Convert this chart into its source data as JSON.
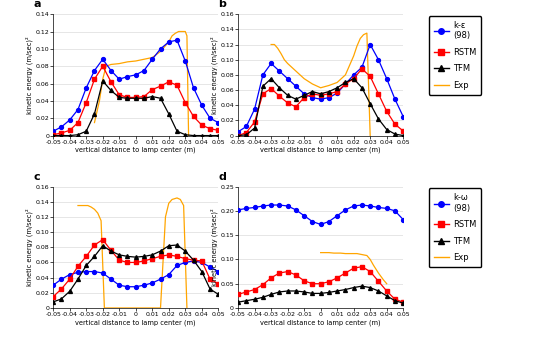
{
  "x": [
    -0.05,
    -0.045,
    -0.04,
    -0.035,
    -0.03,
    -0.025,
    -0.02,
    -0.015,
    -0.01,
    -0.005,
    0,
    0.005,
    0.01,
    0.015,
    0.02,
    0.025,
    0.03,
    0.035,
    0.04,
    0.045,
    0.05
  ],
  "panel_a": {
    "ke98": [
      0.005,
      0.01,
      0.018,
      0.03,
      0.055,
      0.075,
      0.088,
      0.075,
      0.065,
      0.068,
      0.07,
      0.075,
      0.088,
      0.1,
      0.108,
      0.11,
      0.086,
      0.055,
      0.035,
      0.02,
      0.015
    ],
    "rstm": [
      0.001,
      0.003,
      0.006,
      0.015,
      0.038,
      0.065,
      0.08,
      0.062,
      0.047,
      0.044,
      0.044,
      0.045,
      0.053,
      0.057,
      0.062,
      0.058,
      0.038,
      0.022,
      0.012,
      0.008,
      0.006
    ],
    "tfm": [
      0.0,
      0.0,
      0.0,
      0.001,
      0.005,
      0.025,
      0.063,
      0.052,
      0.044,
      0.043,
      0.043,
      0.043,
      0.045,
      0.043,
      0.025,
      0.005,
      0.001,
      0.0,
      0.0,
      0.0,
      0.0
    ],
    "exp_x": [
      -0.025,
      -0.022,
      -0.02,
      -0.018,
      -0.015,
      -0.01,
      -0.005,
      0,
      0.005,
      0.01,
      0.015,
      0.02,
      0.022,
      0.024,
      0.026,
      0.028,
      0.03,
      0.031,
      0.032
    ],
    "exp_y": [
      0.015,
      0.04,
      0.065,
      0.08,
      0.082,
      0.083,
      0.085,
      0.086,
      0.088,
      0.09,
      0.097,
      0.108,
      0.115,
      0.118,
      0.12,
      0.12,
      0.12,
      0.115,
      0.0
    ],
    "ylim": [
      0,
      0.14
    ],
    "yticks": [
      0,
      0.02,
      0.04,
      0.06,
      0.08,
      0.1,
      0.12,
      0.14
    ],
    "label": "a"
  },
  "panel_b": {
    "ke98": [
      0.005,
      0.012,
      0.035,
      0.08,
      0.095,
      0.085,
      0.075,
      0.065,
      0.055,
      0.05,
      0.048,
      0.05,
      0.056,
      0.068,
      0.08,
      0.09,
      0.12,
      0.1,
      0.075,
      0.048,
      0.025
    ],
    "rstm": [
      0.0,
      0.004,
      0.018,
      0.055,
      0.062,
      0.052,
      0.043,
      0.038,
      0.05,
      0.055,
      0.053,
      0.055,
      0.058,
      0.068,
      0.075,
      0.088,
      0.078,
      0.055,
      0.032,
      0.015,
      0.006
    ],
    "tfm": [
      0.0,
      0.001,
      0.01,
      0.065,
      0.075,
      0.063,
      0.053,
      0.048,
      0.053,
      0.058,
      0.055,
      0.058,
      0.063,
      0.07,
      0.075,
      0.063,
      0.042,
      0.022,
      0.008,
      0.002,
      0.0
    ],
    "exp_x": [
      -0.03,
      -0.028,
      -0.026,
      -0.024,
      -0.022,
      -0.02,
      -0.015,
      -0.01,
      -0.005,
      0,
      0.005,
      0.01,
      0.015,
      0.02,
      0.022,
      0.024,
      0.026,
      0.028,
      0.03
    ],
    "exp_y": [
      0.12,
      0.12,
      0.115,
      0.108,
      0.1,
      0.095,
      0.085,
      0.075,
      0.068,
      0.063,
      0.066,
      0.07,
      0.08,
      0.105,
      0.118,
      0.128,
      0.133,
      0.135,
      0.0
    ],
    "ylim": [
      0,
      0.16
    ],
    "yticks": [
      0,
      0.02,
      0.04,
      0.06,
      0.08,
      0.1,
      0.12,
      0.14,
      0.16
    ],
    "label": "b"
  },
  "panel_c": {
    "ke98": [
      0.03,
      0.038,
      0.044,
      0.047,
      0.048,
      0.048,
      0.046,
      0.038,
      0.03,
      0.028,
      0.028,
      0.03,
      0.033,
      0.038,
      0.044,
      0.056,
      0.06,
      0.062,
      0.06,
      0.054,
      0.048
    ],
    "rstm": [
      0.015,
      0.025,
      0.038,
      0.055,
      0.068,
      0.083,
      0.09,
      0.076,
      0.063,
      0.06,
      0.06,
      0.062,
      0.065,
      0.068,
      0.07,
      0.068,
      0.065,
      0.063,
      0.062,
      0.038,
      0.032
    ],
    "tfm": [
      0.008,
      0.012,
      0.022,
      0.038,
      0.056,
      0.068,
      0.082,
      0.075,
      0.07,
      0.068,
      0.067,
      0.068,
      0.07,
      0.075,
      0.082,
      0.083,
      0.075,
      0.063,
      0.048,
      0.025,
      0.018
    ],
    "exp_x": [
      -0.035,
      -0.033,
      -0.031,
      -0.029,
      -0.027,
      -0.025,
      -0.023,
      -0.021,
      -0.019,
      0.015,
      0.018,
      0.02,
      0.022,
      0.025,
      0.027,
      0.029,
      0.031
    ],
    "exp_y": [
      0.135,
      0.135,
      0.135,
      0.135,
      0.133,
      0.13,
      0.125,
      0.115,
      0.0,
      0.0,
      0.12,
      0.138,
      0.143,
      0.145,
      0.143,
      0.135,
      0.0
    ],
    "ylim": [
      0,
      0.16
    ],
    "yticks": [
      0,
      0.02,
      0.04,
      0.06,
      0.08,
      0.1,
      0.12,
      0.14,
      0.16
    ],
    "label": "c"
  },
  "panel_d": {
    "ke98": [
      0.202,
      0.205,
      0.207,
      0.21,
      0.212,
      0.212,
      0.21,
      0.202,
      0.19,
      0.178,
      0.172,
      0.178,
      0.19,
      0.202,
      0.21,
      0.212,
      0.21,
      0.207,
      0.205,
      0.2,
      0.182
    ],
    "rstm": [
      0.028,
      0.033,
      0.038,
      0.048,
      0.062,
      0.072,
      0.075,
      0.068,
      0.056,
      0.05,
      0.05,
      0.054,
      0.062,
      0.072,
      0.082,
      0.085,
      0.075,
      0.055,
      0.035,
      0.018,
      0.012
    ],
    "tfm": [
      0.012,
      0.015,
      0.018,
      0.022,
      0.028,
      0.033,
      0.035,
      0.035,
      0.033,
      0.03,
      0.03,
      0.032,
      0.035,
      0.038,
      0.042,
      0.045,
      0.042,
      0.035,
      0.025,
      0.015,
      0.01
    ],
    "exp_x": [
      0.0,
      0.002,
      0.005,
      0.008,
      0.01,
      0.012,
      0.015,
      0.018,
      0.02,
      0.022,
      0.025,
      0.028,
      0.03,
      0.032,
      0.035,
      0.038,
      0.04
    ],
    "exp_y": [
      0.114,
      0.114,
      0.114,
      0.113,
      0.113,
      0.113,
      0.112,
      0.112,
      0.112,
      0.112,
      0.11,
      0.108,
      0.1,
      0.088,
      0.072,
      0.058,
      0.05
    ],
    "ylim": [
      0,
      0.25
    ],
    "yticks": [
      0,
      0.05,
      0.1,
      0.15,
      0.2,
      0.25
    ],
    "label": "d"
  },
  "colors": {
    "ke98": "#0000FF",
    "rstm": "#FF0000",
    "tfm": "#000000",
    "exp": "#FFA500"
  },
  "xlabel": "vertical distance to lamp center (m)",
  "ylabel": "kinetic energy (m/sec)²",
  "xlim": [
    -0.05,
    0.05
  ],
  "xticks": [
    -0.05,
    -0.04,
    -0.03,
    -0.02,
    -0.01,
    0,
    0.01,
    0.02,
    0.03,
    0.04,
    0.05
  ],
  "legend_a": {
    "label": "k-ε\n(98)",
    "label2": "RSTM",
    "label3": "TFM",
    "label4": "Exp"
  },
  "legend_c": {
    "label": "k-ω\n(98)",
    "label2": "RSTM",
    "label3": "TFM",
    "label4": "Exp"
  }
}
